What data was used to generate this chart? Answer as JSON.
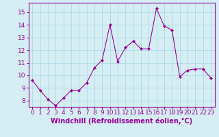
{
  "x": [
    0,
    1,
    2,
    3,
    4,
    5,
    6,
    7,
    8,
    9,
    10,
    11,
    12,
    13,
    14,
    15,
    16,
    17,
    18,
    19,
    20,
    21,
    22,
    23
  ],
  "y": [
    9.6,
    8.8,
    8.1,
    7.6,
    8.2,
    8.8,
    8.8,
    9.4,
    10.6,
    11.2,
    14.0,
    11.1,
    12.2,
    12.7,
    12.1,
    12.1,
    15.3,
    13.9,
    13.6,
    9.9,
    10.4,
    10.5,
    10.5,
    9.8
  ],
  "line_color": "#990099",
  "marker": "D",
  "marker_size": 2,
  "background_color": "#d4eef4",
  "grid_color": "#b0d8e8",
  "xlabel": "Windchill (Refroidissement éolien,°C)",
  "ylim": [
    7.5,
    15.75
  ],
  "xlim": [
    -0.5,
    23.5
  ],
  "yticks": [
    8,
    9,
    10,
    11,
    12,
    13,
    14,
    15
  ],
  "xticks": [
    0,
    1,
    2,
    3,
    4,
    5,
    6,
    7,
    8,
    9,
    10,
    11,
    12,
    13,
    14,
    15,
    16,
    17,
    18,
    19,
    20,
    21,
    22,
    23
  ],
  "tick_label_fontsize": 6.5,
  "xlabel_fontsize": 7
}
